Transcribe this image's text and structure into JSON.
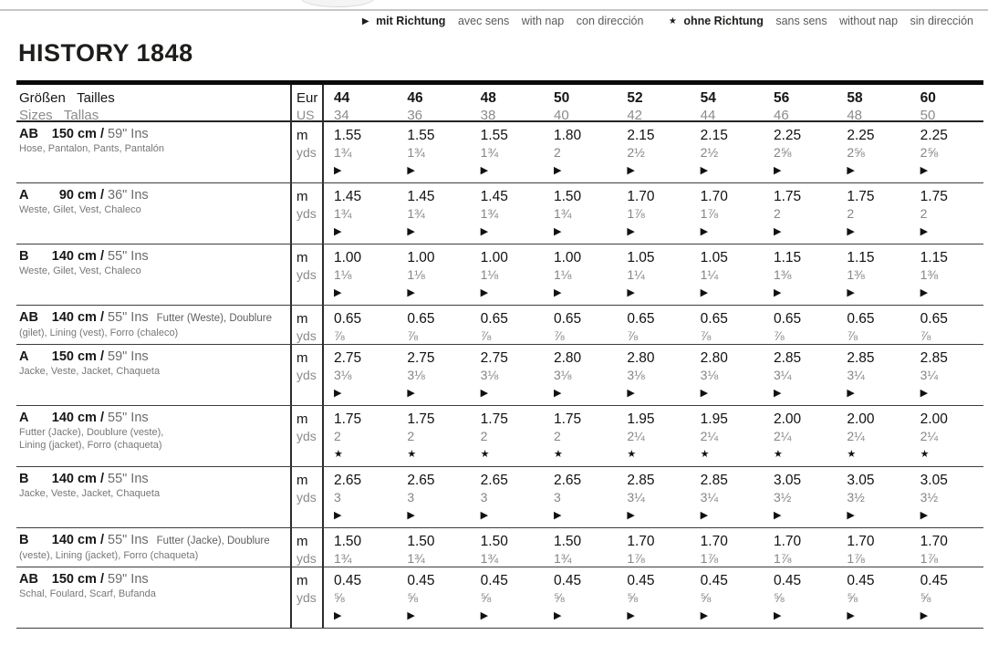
{
  "title": "HISTORY 1848",
  "legend": {
    "with_nap": {
      "symbol": "▶",
      "primary": "mit Richtung",
      "translations": [
        "avec sens",
        "with nap",
        "con dirección"
      ]
    },
    "without_nap": {
      "symbol": "★",
      "primary": "ohne Richtung",
      "translations": [
        "sans sens",
        "without nap",
        "sin dirección"
      ]
    }
  },
  "symbols": {
    "arrow": "▶",
    "star": "★"
  },
  "table": {
    "header": {
      "size_label_line1": "Größen   Tailles",
      "size_label_line2": "Sizes   Tallas",
      "unit_line1": "Eur",
      "unit_line2": "US",
      "sizes_eur": [
        "44",
        "46",
        "48",
        "50",
        "52",
        "54",
        "56",
        "58",
        "60"
      ],
      "sizes_us": [
        "34",
        "36",
        "38",
        "40",
        "42",
        "44",
        "46",
        "48",
        "50"
      ]
    },
    "unit_m": "m",
    "unit_yds": "yds",
    "rows": [
      {
        "view": "AB",
        "fabric_width": "150 cm /",
        "inches": "59\" Ins",
        "note": "",
        "items": "Hose, Pantalon, Pants, Pantalón",
        "m": [
          "1.55",
          "1.55",
          "1.55",
          "1.80",
          "2.15",
          "2.15",
          "2.25",
          "2.25",
          "2.25"
        ],
        "yds": [
          "1¾",
          "1¾",
          "1¾",
          "2",
          "2½",
          "2½",
          "2⅝",
          "2⅝",
          "2⅝"
        ],
        "symbol": "arrow"
      },
      {
        "view": "A",
        "fabric_width": "90 cm /",
        "inches": "36\" Ins",
        "note": "",
        "items": "Weste, Gilet, Vest, Chaleco",
        "m": [
          "1.45",
          "1.45",
          "1.45",
          "1.50",
          "1.70",
          "1.70",
          "1.75",
          "1.75",
          "1.75"
        ],
        "yds": [
          "1¾",
          "1¾",
          "1¾",
          "1¾",
          "1⅞",
          "1⅞",
          "2",
          "2",
          "2"
        ],
        "symbol": "arrow"
      },
      {
        "view": "B",
        "fabric_width": "140 cm /",
        "inches": "55\" Ins",
        "note": "",
        "items": "Weste, Gilet, Vest, Chaleco",
        "m": [
          "1.00",
          "1.00",
          "1.00",
          "1.00",
          "1.05",
          "1.05",
          "1.15",
          "1.15",
          "1.15"
        ],
        "yds": [
          "1⅛",
          "1⅛",
          "1⅛",
          "1⅛",
          "1¼",
          "1¼",
          "1⅜",
          "1⅜",
          "1⅜"
        ],
        "symbol": "arrow"
      },
      {
        "view": "AB",
        "fabric_width": "140 cm /",
        "inches": "55\" Ins",
        "note": "Futter (Weste), Doublure",
        "items": "(gilet), Lining (vest), Forro (chaleco)",
        "m": [
          "0.65",
          "0.65",
          "0.65",
          "0.65",
          "0.65",
          "0.65",
          "0.65",
          "0.65",
          "0.65"
        ],
        "yds": [
          "⅞",
          "⅞",
          "⅞",
          "⅞",
          "⅞",
          "⅞",
          "⅞",
          "⅞",
          "⅞"
        ],
        "symbol": "none"
      },
      {
        "view": "A",
        "fabric_width": "150 cm /",
        "inches": "59\" Ins",
        "note": "",
        "items": "Jacke, Veste, Jacket, Chaqueta",
        "m": [
          "2.75",
          "2.75",
          "2.75",
          "2.80",
          "2.80",
          "2.80",
          "2.85",
          "2.85",
          "2.85"
        ],
        "yds": [
          "3⅛",
          "3⅛",
          "3⅛",
          "3⅛",
          "3⅛",
          "3⅛",
          "3¼",
          "3¼",
          "3¼"
        ],
        "symbol": "arrow"
      },
      {
        "view": "A",
        "fabric_width": "140 cm /",
        "inches": "55\" Ins",
        "note": "",
        "items": "Futter (Jacke), Doublure (veste),\nLining (jacket), Forro (chaqueta)",
        "m": [
          "1.75",
          "1.75",
          "1.75",
          "1.75",
          "1.95",
          "1.95",
          "2.00",
          "2.00",
          "2.00"
        ],
        "yds": [
          "2",
          "2",
          "2",
          "2",
          "2¼",
          "2¼",
          "2¼",
          "2¼",
          "2¼"
        ],
        "symbol": "star"
      },
      {
        "view": "B",
        "fabric_width": "140 cm /",
        "inches": "55\" Ins",
        "note": "",
        "items": "Jacke, Veste, Jacket, Chaqueta",
        "m": [
          "2.65",
          "2.65",
          "2.65",
          "2.65",
          "2.85",
          "2.85",
          "3.05",
          "3.05",
          "3.05"
        ],
        "yds": [
          "3",
          "3",
          "3",
          "3",
          "3¼",
          "3¼",
          "3½",
          "3½",
          "3½"
        ],
        "symbol": "arrow"
      },
      {
        "view": "B",
        "fabric_width": "140 cm /",
        "inches": "55\" Ins",
        "note": "Futter (Jacke), Doublure",
        "items": "(veste), Lining (jacket), Forro (chaqueta)",
        "m": [
          "1.50",
          "1.50",
          "1.50",
          "1.50",
          "1.70",
          "1.70",
          "1.70",
          "1.70",
          "1.70"
        ],
        "yds": [
          "1¾",
          "1¾",
          "1¾",
          "1¾",
          "1⅞",
          "1⅞",
          "1⅞",
          "1⅞",
          "1⅞"
        ],
        "symbol": "none"
      },
      {
        "view": "AB",
        "fabric_width": "150 cm /",
        "inches": "59\" Ins",
        "note": "",
        "items": "Schal, Foulard, Scarf, Bufanda",
        "m": [
          "0.45",
          "0.45",
          "0.45",
          "0.45",
          "0.45",
          "0.45",
          "0.45",
          "0.45",
          "0.45"
        ],
        "yds": [
          "⅝",
          "⅝",
          "⅝",
          "⅝",
          "⅝",
          "⅝",
          "⅝",
          "⅝",
          "⅝"
        ],
        "symbol": "arrow"
      }
    ]
  }
}
